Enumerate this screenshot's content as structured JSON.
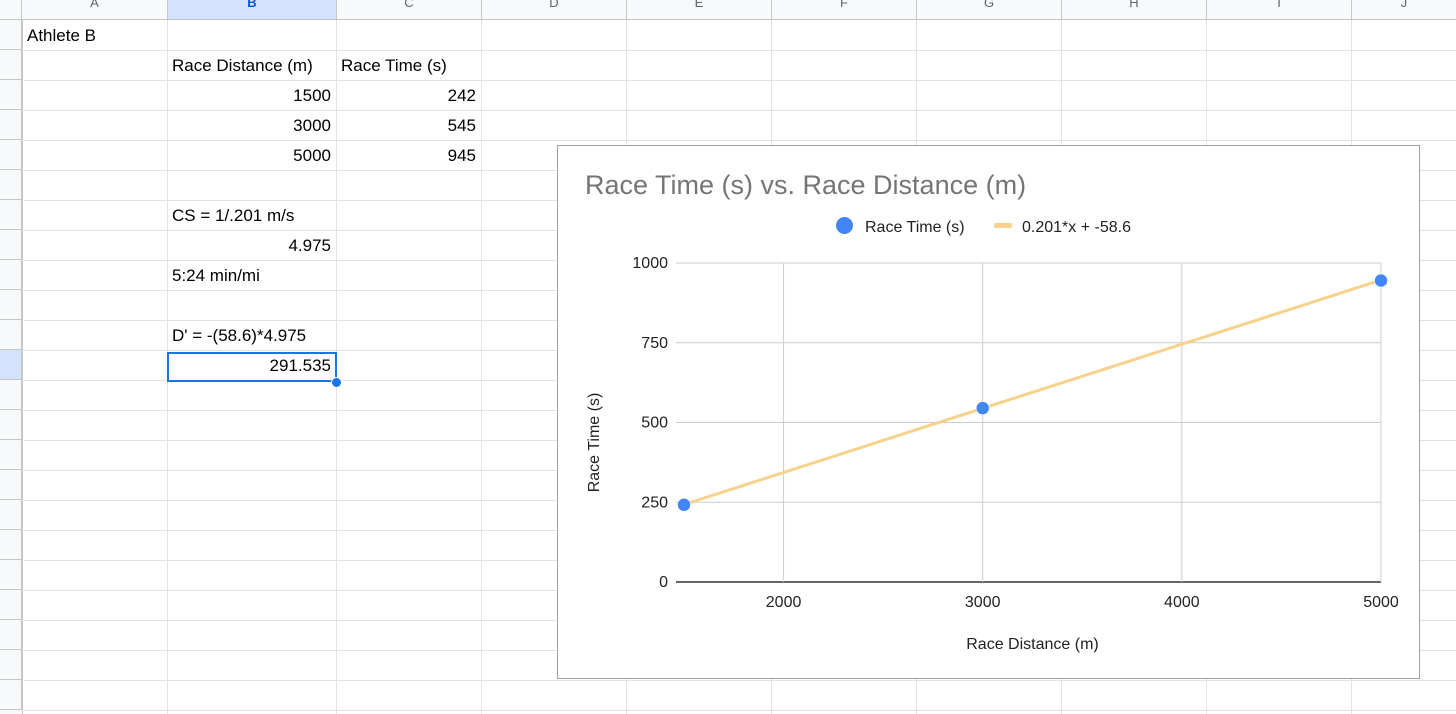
{
  "sheet": {
    "columns": [
      "A",
      "B",
      "C",
      "D",
      "E",
      "F",
      "G",
      "H",
      "I",
      "J"
    ],
    "selected_column": "B",
    "cells": {
      "a2": "Athlete B",
      "b3": "Race Distance (m)",
      "c3": "Race Time (s)",
      "b4": "1500",
      "c4": "242",
      "b5": "3000",
      "c5": "545",
      "b6": "5000",
      "c6": "945",
      "b8": "CS = 1/.201 m/s",
      "b9": "4.975",
      "b10": "5:24 min/mi",
      "b12": "D' = -(58.6)*4.975",
      "b13": "291.535"
    }
  },
  "chart_data": {
    "type": "scatter",
    "title": "Race Time (s) vs. Race Distance (m)",
    "xlabel": "Race Distance (m)",
    "ylabel": "Race Time (s)",
    "xlim": [
      1500,
      5000
    ],
    "ylim": [
      0,
      1000
    ],
    "x_ticks": [
      "2000",
      "3000",
      "4000",
      "5000"
    ],
    "y_ticks": [
      "0",
      "250",
      "500",
      "750",
      "1000"
    ],
    "grid": true,
    "legend_position": "top",
    "series": [
      {
        "name": "Race Time (s)",
        "kind": "scatter",
        "color": "#4285f4",
        "points": [
          {
            "x": 1500,
            "y": 242
          },
          {
            "x": 3000,
            "y": 545
          },
          {
            "x": 5000,
            "y": 945
          }
        ]
      },
      {
        "name": "0.201*x + -58.6",
        "kind": "trendline",
        "color": "#f8d18c",
        "slope": 0.201,
        "intercept": -58.6
      }
    ]
  }
}
